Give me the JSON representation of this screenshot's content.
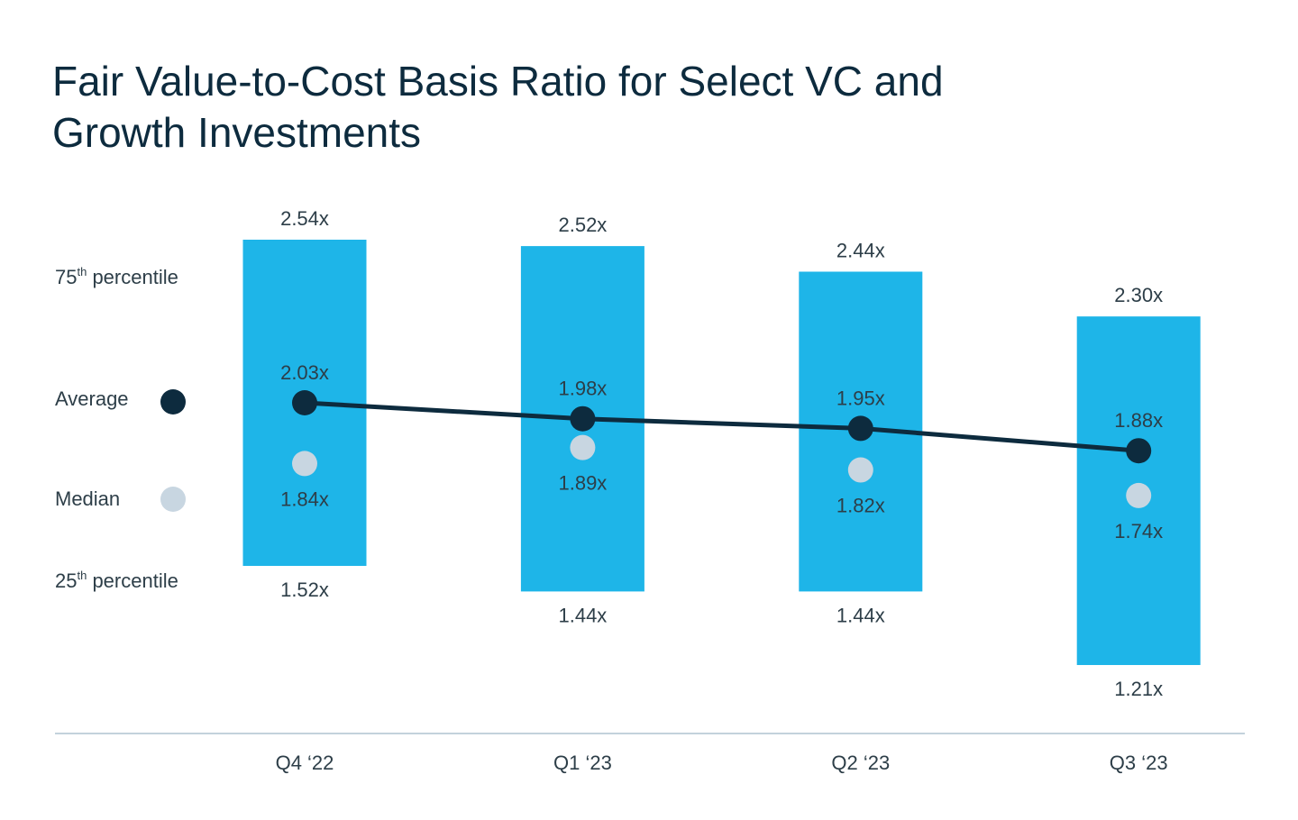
{
  "title": "Fair Value-to-Cost Basis Ratio for Select VC and Growth Investments",
  "legend": {
    "p75": {
      "num": "75",
      "sup": "th",
      "text": " percentile"
    },
    "average": "Average",
    "median": "Median",
    "p25": {
      "num": "25",
      "sup": "th",
      "text": " percentile"
    }
  },
  "colors": {
    "bar": "#1eb5e8",
    "average": "#0d2b3e",
    "median": "#c8d6e1",
    "axis": "#c3d2dc",
    "text": "#2d3e48"
  },
  "chart_data": {
    "type": "bar",
    "subtype": "floating range bar with average line and median points",
    "title": "Fair Value-to-Cost Basis Ratio for Select VC and Growth Investments",
    "categories": [
      "Q4 ‘22",
      "Q1 ‘23",
      "Q2 ‘23",
      "Q3 ‘23"
    ],
    "series": [
      {
        "name": "75th percentile",
        "values": [
          2.54,
          2.52,
          2.44,
          2.3
        ],
        "labels": [
          "2.54x",
          "2.52x",
          "2.44x",
          "2.30x"
        ]
      },
      {
        "name": "Average",
        "values": [
          2.03,
          1.98,
          1.95,
          1.88
        ],
        "labels": [
          "2.03x",
          "1.98x",
          "1.95x",
          "1.88x"
        ]
      },
      {
        "name": "Median",
        "values": [
          1.84,
          1.89,
          1.82,
          1.74
        ],
        "labels": [
          "1.84x",
          "1.89x",
          "1.82x",
          "1.74x"
        ]
      },
      {
        "name": "25th percentile",
        "values": [
          1.52,
          1.44,
          1.44,
          1.21
        ],
        "labels": [
          "1.52x",
          "1.44x",
          "1.44x",
          "1.21x"
        ]
      }
    ],
    "xlabel": "",
    "ylabel": "",
    "grid": false,
    "legend_placement": "left"
  }
}
